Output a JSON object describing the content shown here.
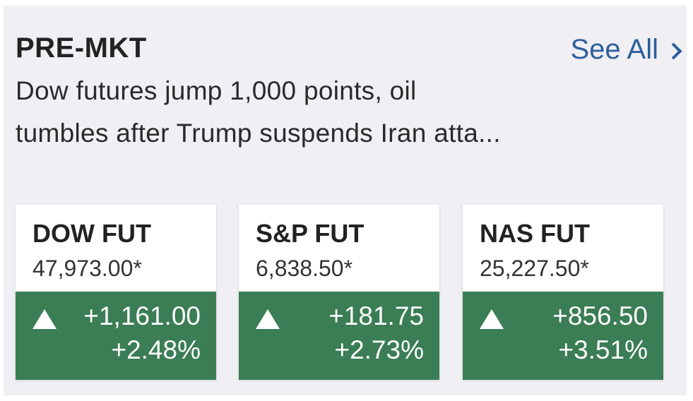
{
  "header": {
    "title": "PRE-MKT",
    "link": "See All"
  },
  "headline_lines": [
    "Dow futures jump 1,000 points, oil",
    "tumbles after Trump suspends Iran atta..."
  ],
  "cards": [
    {
      "name": "DOW FUT",
      "price": "47,973.00*",
      "change": "+1,161.00",
      "percent": "+2.48%"
    },
    {
      "name": "S&P FUT",
      "price": "6,838.50*",
      "change": "+181.75",
      "percent": "+2.73%"
    },
    {
      "name": "NAS FUT",
      "price": "25,227.50*",
      "change": "+856.50",
      "percent": "+3.51%"
    }
  ]
}
